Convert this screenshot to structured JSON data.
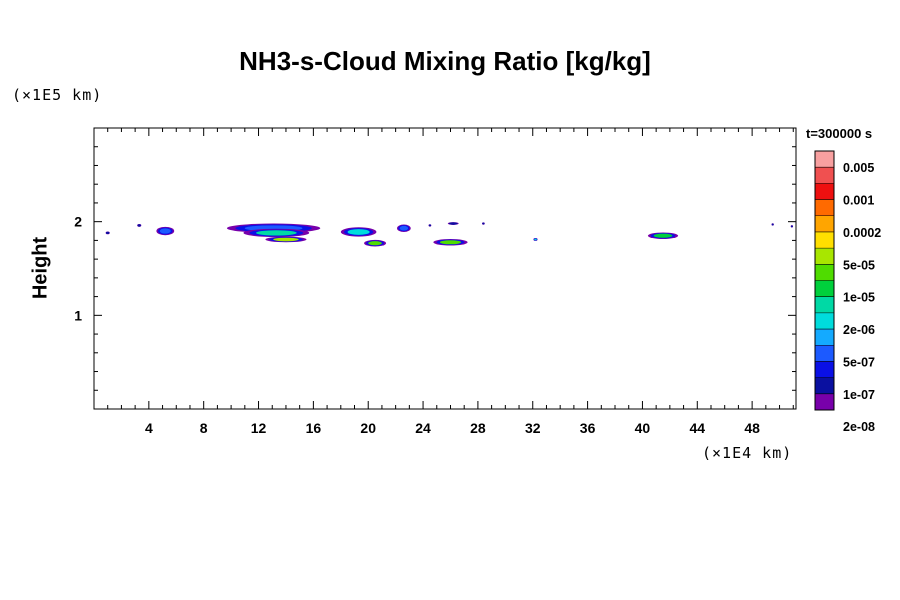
{
  "chart_data": {
    "type": "contour",
    "title": "NH3-s-Cloud Mixing Ratio [kg/kg]",
    "ylabel": "Height",
    "x_unit_label": "(×1E4 km)",
    "y_unit_label": "(×1E5 km)",
    "xlim": [
      0,
      51.2
    ],
    "ylim": [
      0,
      3
    ],
    "x_ticks": [
      4,
      8,
      12,
      16,
      20,
      24,
      28,
      32,
      36,
      40,
      44,
      48
    ],
    "x_tick_labels": [
      "4",
      "8",
      "12",
      "16",
      "20",
      "24",
      "28",
      "32",
      "36",
      "40",
      "44",
      "48"
    ],
    "y_ticks": [
      1,
      2
    ],
    "y_tick_labels": [
      "1",
      "2"
    ],
    "time_label": "t=300000 s",
    "colorbar": {
      "levels": [
        "0.005",
        "0.001",
        "0.0002",
        "5e-05",
        "1e-05",
        "2e-06",
        "5e-07",
        "1e-07",
        "2e-08"
      ],
      "colors": [
        "#f8a0a0",
        "#f05050",
        "#ee1010",
        "#ff6a00",
        "#ffa500",
        "#ffdf00",
        "#a8e600",
        "#4fdc00",
        "#00d03c",
        "#00d9a5",
        "#00dcdc",
        "#14aaff",
        "#1c5aff",
        "#0a10e6",
        "#0a10a0",
        "#7800aa"
      ]
    },
    "features": [
      {
        "x": 1.0,
        "y": 1.88,
        "dx": 0.3,
        "dy": 0.03,
        "level": 14
      },
      {
        "x": 3.3,
        "y": 1.96,
        "dx": 0.3,
        "dy": 0.03,
        "level": 14
      },
      {
        "x": 5.2,
        "y": 1.9,
        "dx": 1.3,
        "dy": 0.09,
        "level": 12
      },
      {
        "x": 13.1,
        "y": 1.93,
        "dx": 6.8,
        "dy": 0.1,
        "level": 12
      },
      {
        "x": 13.3,
        "y": 1.88,
        "dx": 4.8,
        "dy": 0.09,
        "level": 9
      },
      {
        "x": 14.0,
        "y": 1.81,
        "dx": 3.0,
        "dy": 0.06,
        "level": 6
      },
      {
        "x": 19.3,
        "y": 1.89,
        "dx": 2.6,
        "dy": 0.1,
        "level": 10
      },
      {
        "x": 20.5,
        "y": 1.77,
        "dx": 1.6,
        "dy": 0.07,
        "level": 7
      },
      {
        "x": 22.6,
        "y": 1.93,
        "dx": 1.0,
        "dy": 0.08,
        "level": 12
      },
      {
        "x": 24.5,
        "y": 1.96,
        "dx": 0.2,
        "dy": 0.02,
        "level": 14
      },
      {
        "x": 26.2,
        "y": 1.98,
        "dx": 0.8,
        "dy": 0.03,
        "level": 14
      },
      {
        "x": 28.4,
        "y": 1.98,
        "dx": 0.2,
        "dy": 0.02,
        "level": 14
      },
      {
        "x": 26.0,
        "y": 1.78,
        "dx": 2.5,
        "dy": 0.07,
        "level": 7
      },
      {
        "x": 32.2,
        "y": 1.81,
        "dx": 0.3,
        "dy": 0.03,
        "level": 10
      },
      {
        "x": 41.5,
        "y": 1.85,
        "dx": 2.2,
        "dy": 0.07,
        "level": 8
      },
      {
        "x": 49.5,
        "y": 1.97,
        "dx": 0.1,
        "dy": 0.02,
        "level": 14
      },
      {
        "x": 50.9,
        "y": 1.95,
        "dx": 0.1,
        "dy": 0.02,
        "level": 14
      }
    ]
  }
}
